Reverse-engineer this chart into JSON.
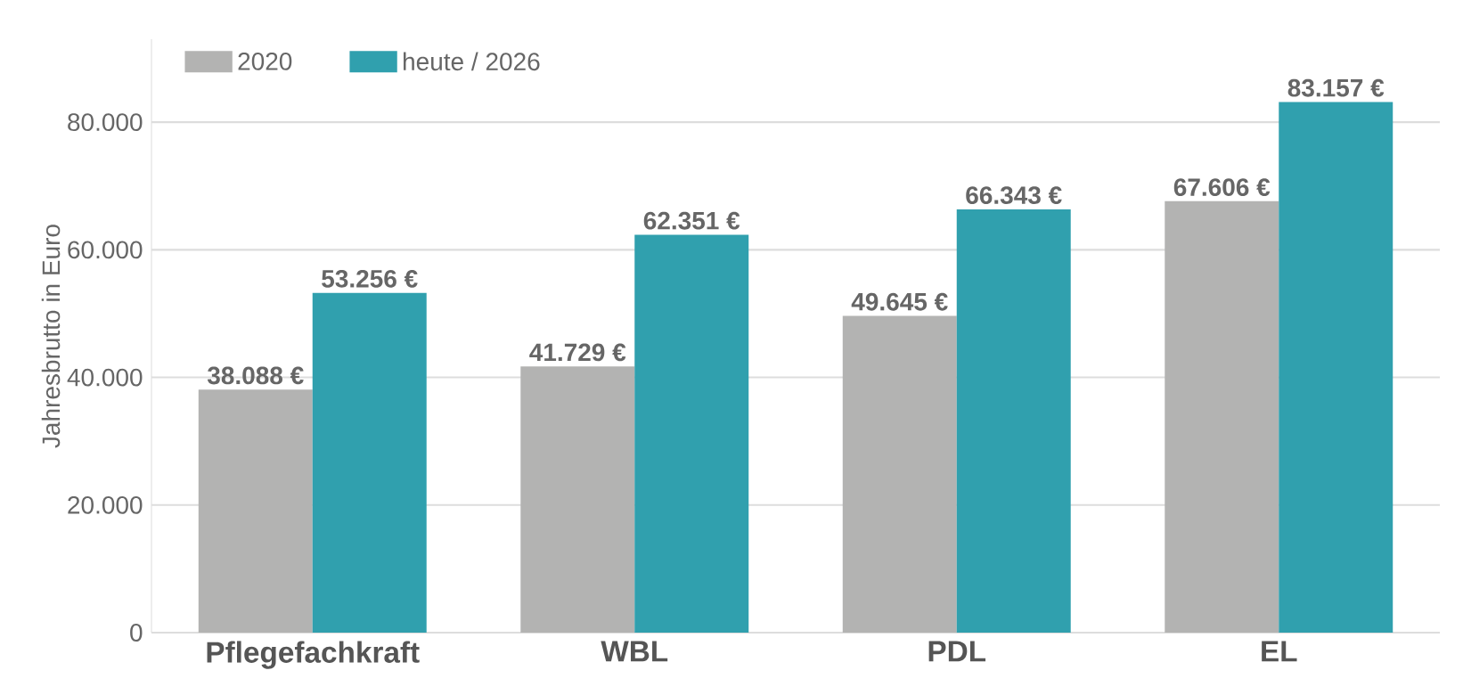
{
  "chart_data": {
    "type": "bar",
    "ylabel": "Jahresbrutto in Euro",
    "categories": [
      "Pflegefachkraft",
      "WBL",
      "PDL",
      "EL"
    ],
    "series": [
      {
        "name": "2020",
        "color": "#b3b3b2",
        "values": [
          38088,
          41729,
          49645,
          67606
        ],
        "value_labels": [
          "38.088 €",
          "41.729 €",
          "49.645 €",
          "67.606 €"
        ]
      },
      {
        "name": "heute / 2026",
        "color": "#30a0ae",
        "values": [
          53256,
          62351,
          66343,
          83157
        ],
        "value_labels": [
          "53.256 €",
          "62.351 €",
          "66.343 €",
          "83.157 €"
        ]
      }
    ],
    "ylim": [
      0,
      93000
    ],
    "yticks": [
      {
        "value": 0,
        "label": "0"
      },
      {
        "value": 20000,
        "label": "20.000"
      },
      {
        "value": 40000,
        "label": "40.000"
      },
      {
        "value": 60000,
        "label": "60.000"
      },
      {
        "value": 80000,
        "label": "80.000"
      }
    ],
    "grid": "y",
    "legend": "top left"
  }
}
